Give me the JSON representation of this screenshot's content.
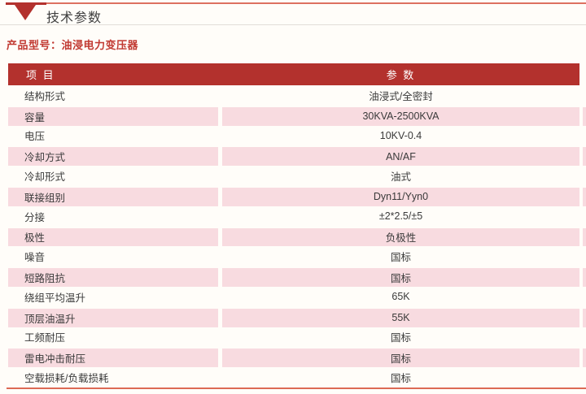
{
  "page": {
    "title": "技术参数",
    "product_label": "产品型号：油浸电力变压器"
  },
  "table": {
    "headers": {
      "item": "项 目",
      "param": "参 数"
    },
    "rows": [
      {
        "item": "结构形式",
        "value": "油浸式/全密封"
      },
      {
        "item": "容量",
        "value": "30KVA-2500KVA"
      },
      {
        "item": "电压",
        "value": "10KV-0.4"
      },
      {
        "item": "冷却方式",
        "value": "AN/AF"
      },
      {
        "item": "冷却形式",
        "value": "油式"
      },
      {
        "item": "联接组别",
        "value": "Dyn11/Yyn0"
      },
      {
        "item": "分接",
        "value": "±2*2.5/±5"
      },
      {
        "item": "极性",
        "value": "负极性"
      },
      {
        "item": "噪音",
        "value": "国标"
      },
      {
        "item": "短路阻抗",
        "value": "国标"
      },
      {
        "item": "绕组平均温升",
        "value": "65K"
      },
      {
        "item": "顶层油温升",
        "value": "55K"
      },
      {
        "item": "工频耐压",
        "value": "国标"
      },
      {
        "item": "雷电冲击耐压",
        "value": "国标"
      },
      {
        "item": "空载损耗/负载损耗",
        "value": "国标"
      }
    ]
  },
  "colors": {
    "header_bg": "#b3312d",
    "alt_row_bg": "#f8dbe0",
    "accent_text": "#c13931",
    "top_rule": "#dd7160",
    "bottom_rule": "#dd6a55"
  },
  "icons": {
    "section_marker": "triangle-down"
  }
}
